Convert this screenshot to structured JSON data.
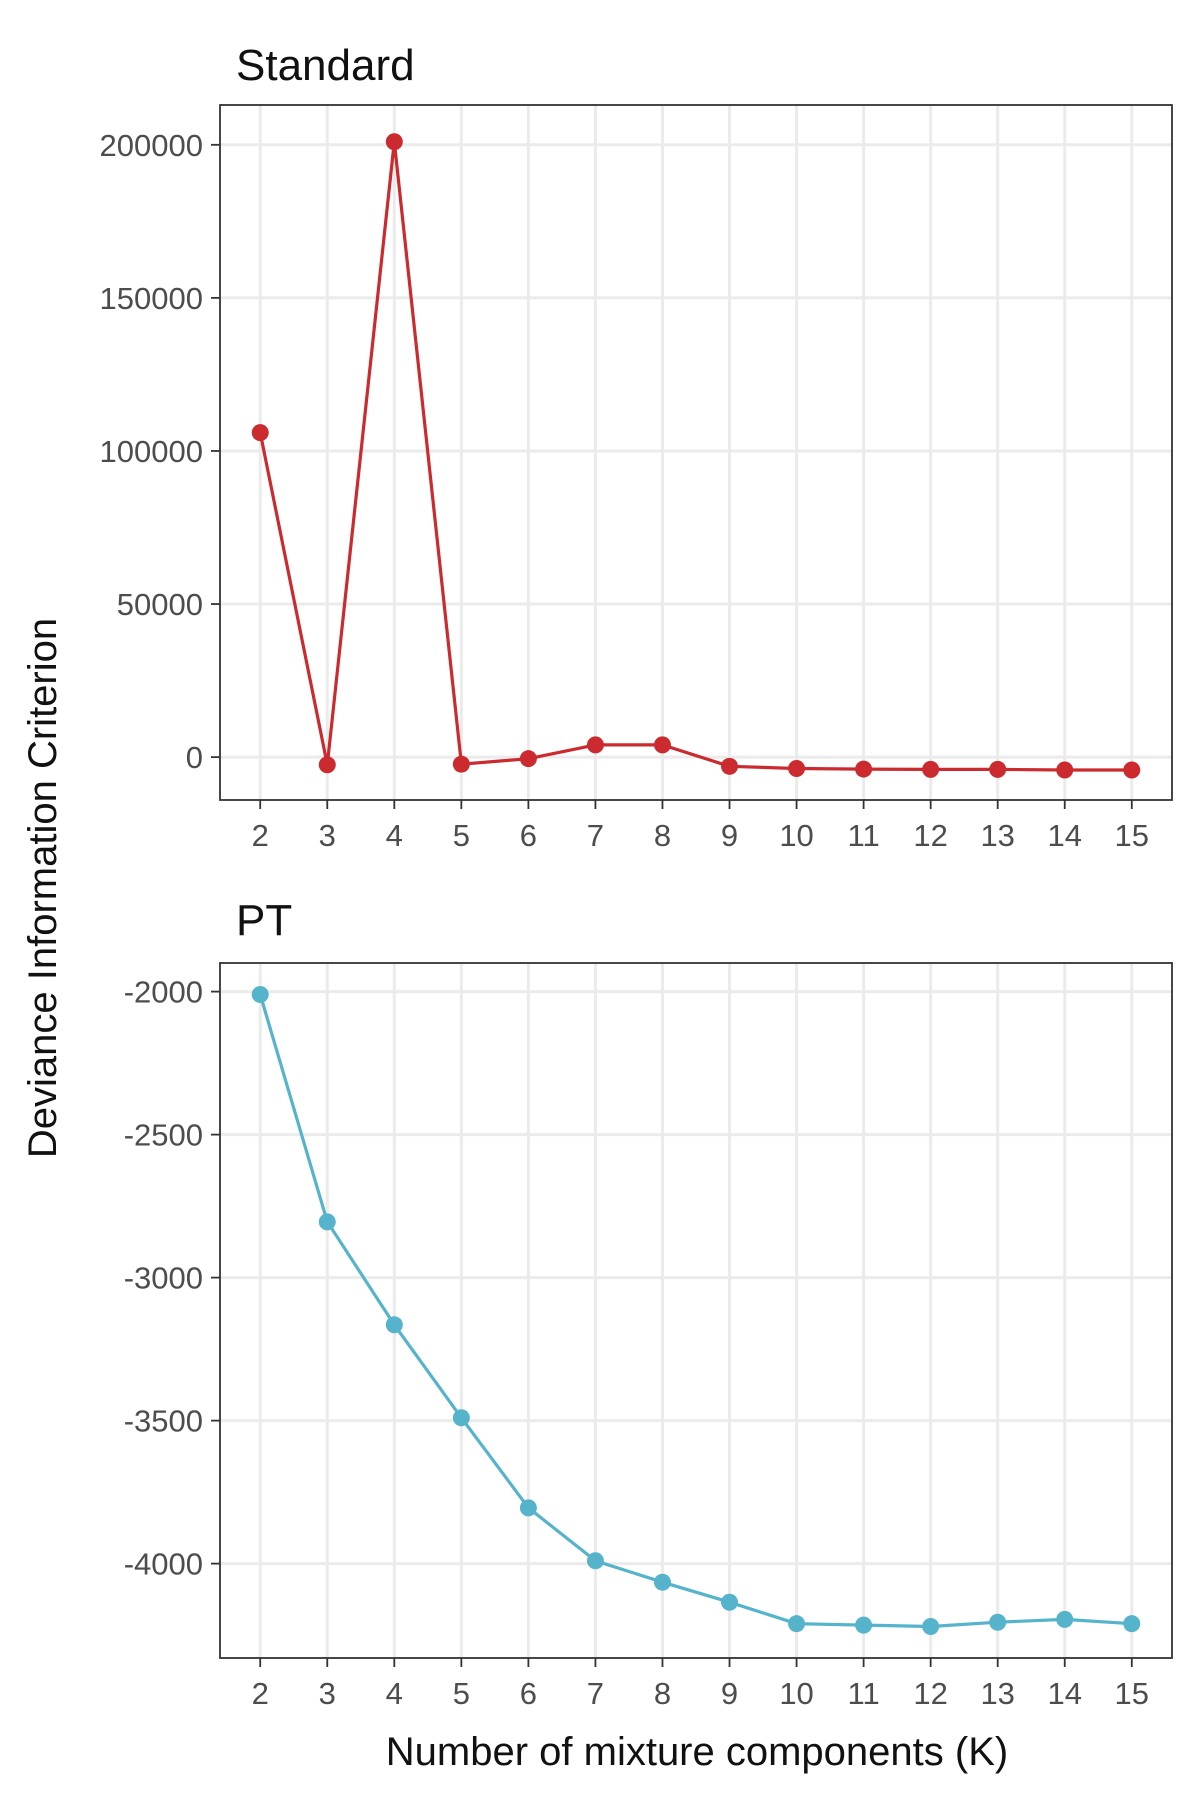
{
  "chart_data": [
    {
      "type": "line",
      "title": "Standard",
      "xlabel": "Number of mixture components (K)",
      "ylabel": "Deviance Information Criterion",
      "x": [
        2,
        3,
        4,
        5,
        6,
        7,
        8,
        9,
        10,
        11,
        12,
        13,
        14,
        15
      ],
      "series": [
        {
          "color": "#CB2A2F",
          "values": [
            106000,
            -2500,
            201000,
            -2300,
            -500,
            4000,
            4000,
            -3000,
            -3700,
            -3900,
            -4000,
            -4000,
            -4200,
            -4200
          ]
        }
      ],
      "xlim": [
        1.4,
        15.6
      ],
      "ylim": [
        -14000,
        213000
      ],
      "yticks": [
        0,
        50000,
        100000,
        150000,
        200000
      ],
      "ytick_labels": [
        "0",
        "50000",
        "100000",
        "150000",
        "200000"
      ],
      "xtick_labels": [
        "2",
        "3",
        "4",
        "5",
        "6",
        "7",
        "8",
        "9",
        "10",
        "11",
        "12",
        "13",
        "14",
        "15"
      ],
      "grid": true,
      "legend": "none"
    },
    {
      "type": "line",
      "title": "PT",
      "xlabel": "Number of mixture components (K)",
      "ylabel": "Deviance Information Criterion",
      "x": [
        2,
        3,
        4,
        5,
        6,
        7,
        8,
        9,
        10,
        11,
        12,
        13,
        14,
        15
      ],
      "series": [
        {
          "color": "#55B4CB",
          "values": [
            -2010,
            -2805,
            -3165,
            -3490,
            -3805,
            -3990,
            -4065,
            -4135,
            -4210,
            -4215,
            -4220,
            -4205,
            -4195,
            -4210
          ]
        }
      ],
      "xlim": [
        1.4,
        15.6
      ],
      "ylim": [
        -4330,
        -1900
      ],
      "yticks": [
        -4000,
        -3500,
        -3000,
        -2500,
        -2000
      ],
      "ytick_labels": [
        "-4000",
        "-3500",
        "-3000",
        "-2500",
        "-2000"
      ],
      "xtick_labels": [
        "2",
        "3",
        "4",
        "5",
        "6",
        "7",
        "8",
        "9",
        "10",
        "11",
        "12",
        "13",
        "14",
        "15"
      ],
      "grid": true,
      "legend": "none"
    }
  ]
}
